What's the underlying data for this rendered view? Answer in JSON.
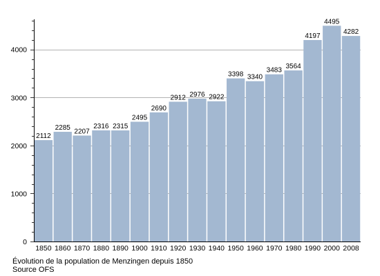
{
  "chart_data": {
    "type": "bar",
    "categories": [
      "1850",
      "1860",
      "1870",
      "1880",
      "1890",
      "1900",
      "1910",
      "1920",
      "1930",
      "1940",
      "1950",
      "1960",
      "1970",
      "1980",
      "1990",
      "2000",
      "2008"
    ],
    "values": [
      2112,
      2285,
      2207,
      2316,
      2315,
      2495,
      2690,
      2912,
      2976,
      2922,
      3398,
      3340,
      3483,
      3564,
      4197,
      4495,
      4282
    ],
    "data_labels": [
      "2112",
      "2285",
      "2207",
      "2316",
      "2315",
      "2495",
      "2690",
      "2912",
      "2976",
      "2922",
      "3398",
      "3340",
      "3483",
      "3564",
      "4197",
      "4495",
      "4282"
    ],
    "y_ticks": [
      0,
      1000,
      2000,
      3000,
      4000
    ],
    "y_tick_labels": [
      "0",
      "1000",
      "2000",
      "3000",
      "4000"
    ],
    "ylim": [
      0,
      4600
    ],
    "grid": true,
    "bar_color": "#a3b8d1",
    "grid_color": "#999999",
    "caption_line1": "Évolution de la population de Menzingen depuis 1850",
    "caption_line2": "Source OFS"
  }
}
